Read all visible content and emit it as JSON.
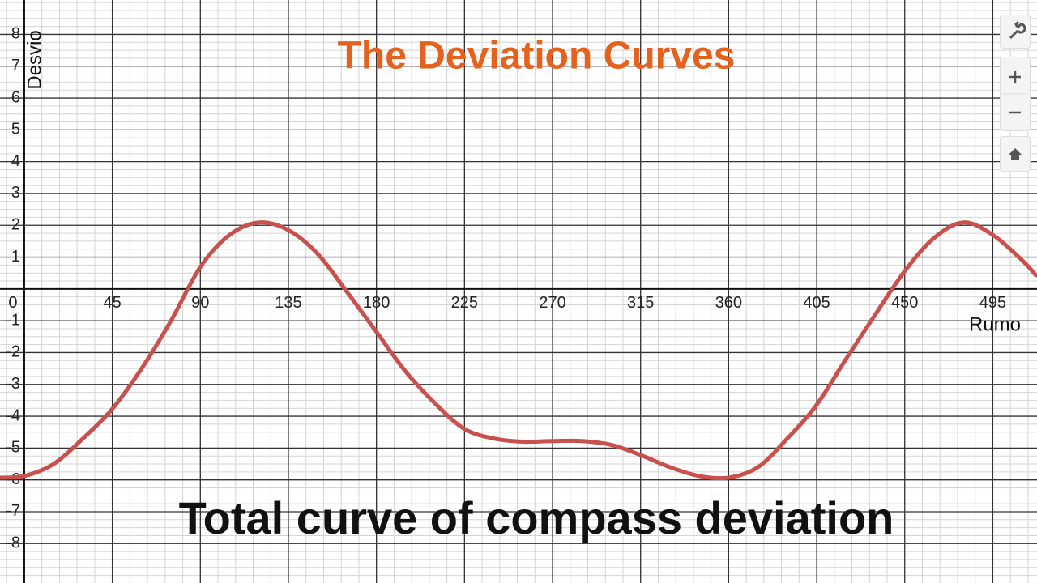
{
  "chart_data": {
    "type": "line",
    "title": "The Deviation Curves",
    "subtitle": "Total curve of compass deviation",
    "x_label": "Rumo",
    "y_label": "Desvio",
    "x": [
      -12,
      0,
      15,
      30,
      45,
      60,
      75,
      90,
      105,
      120,
      135,
      150,
      165,
      180,
      195,
      210,
      225,
      240,
      255,
      270,
      285,
      300,
      315,
      330,
      345,
      360,
      375,
      390,
      405,
      420,
      435,
      450,
      465,
      480,
      495,
      510,
      517
    ],
    "series": [
      {
        "color": "#c9504d",
        "values": [
          -5.93,
          -5.88,
          -5.5,
          -4.7,
          -3.77,
          -2.5,
          -1.0,
          0.69,
          1.7,
          2.09,
          1.85,
          1.1,
          -0.1,
          -1.35,
          -2.6,
          -3.6,
          -4.4,
          -4.7,
          -4.8,
          -4.78,
          -4.78,
          -4.9,
          -5.22,
          -5.6,
          -5.88,
          -5.93,
          -5.6,
          -4.7,
          -3.64,
          -2.2,
          -0.8,
          0.56,
          1.6,
          2.09,
          1.7,
          0.9,
          0.43
        ]
      }
    ],
    "xlim": [
      -12.4,
      517.6
    ],
    "ylim": [
      -9.24,
      9.08
    ],
    "xticks": [
      0,
      45,
      90,
      135,
      180,
      225,
      270,
      315,
      360,
      405,
      450,
      495
    ],
    "yticks": [
      -8,
      -7,
      -6,
      -5,
      -4,
      -3,
      -2,
      -1,
      1,
      2,
      3,
      4,
      5,
      6,
      7,
      8
    ],
    "grid": true
  }
}
